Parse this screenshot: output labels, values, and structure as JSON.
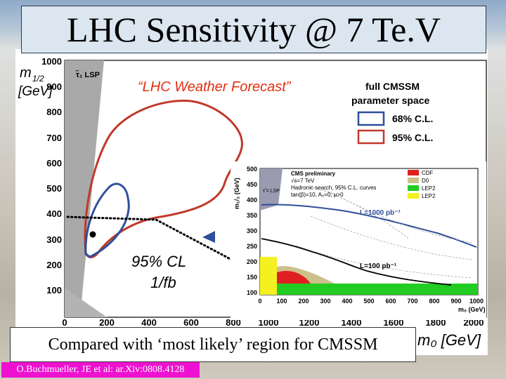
{
  "slide_title": "LHC Sensitivity @ 7 Te.V",
  "caption": "Compared with ‘most likely’ region for CMSSM",
  "citation": "O.Buchmueller, JE et al: ar.Xiv:0808.4128",
  "main_plot": {
    "y_axis_label_1": "m",
    "y_axis_label_sub": "1/2",
    "y_axis_label_2": "[GeV]",
    "x_axis_label": "m₀ [GeV]",
    "lsp_label": "τ̃₁ LSP",
    "forecast_label": "“LHC Weather Forecast”",
    "cl_label_1": "95% CL",
    "cl_label_2": "1/fb",
    "legend_title_1": "full CMSSM",
    "legend_title_2": "parameter space",
    "legend_items": [
      {
        "label": "68% C.L.",
        "color": "#2f4f9a"
      },
      {
        "label": "95% C.L.",
        "color": "#c0392b"
      }
    ],
    "y_ticks": [
      "1000",
      "900",
      "800",
      "700",
      "600",
      "500",
      "400",
      "300",
      "200",
      "100"
    ],
    "x_ticks": [
      "0",
      "200",
      "400",
      "600",
      "800",
      "1000",
      "1200",
      "1400",
      "1600",
      "1800",
      "2000"
    ]
  },
  "inset_plot": {
    "header_1": "CMS preliminary",
    "header_2": "√s=7 TeV",
    "header_3": "Hadronic search, 95% C.L. curves",
    "header_4": "tan(β)=10, A₀=0, μ>0",
    "y_label": "m₁/₂ (GeV)",
    "x_label": "m₀ (GeV)",
    "lsp_label": "τ̃ = LSP",
    "curve_1000": "L=1000 pb⁻¹",
    "curve_100": "L=100 pb⁻¹",
    "legend": [
      {
        "label": "CDF",
        "color": "#e02020"
      },
      {
        "label": "D0",
        "color": "#cdbf8a"
      },
      {
        "label": "LEP2",
        "color": "#22cc22"
      },
      {
        "label": "LEP2",
        "color": "#f5f020"
      }
    ],
    "y_ticks": [
      "500",
      "450",
      "400",
      "350",
      "300",
      "250",
      "200",
      "150",
      "100"
    ],
    "x_ticks": [
      "0",
      "100",
      "200",
      "300",
      "400",
      "500",
      "600",
      "700",
      "800",
      "900",
      "1000"
    ]
  }
}
